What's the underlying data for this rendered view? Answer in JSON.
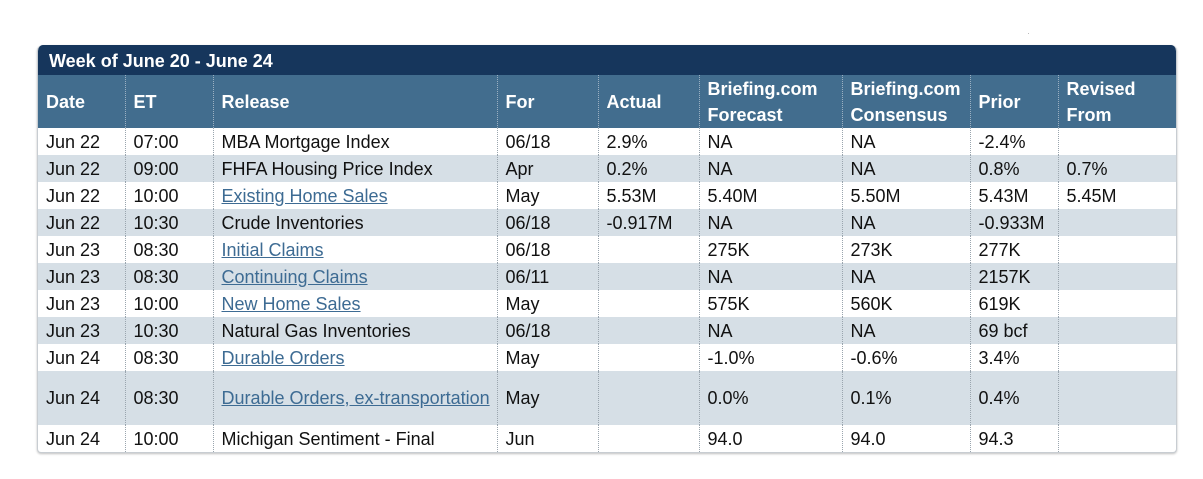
{
  "title": "Week of June 20 - June 24",
  "columns": [
    "Date",
    "ET",
    "Release",
    "For",
    "Actual",
    "Briefing.com Forecast",
    "Briefing.com Consensus",
    "Prior",
    "Revised From"
  ],
  "rows": [
    {
      "date": "Jun 22",
      "et": "07:00",
      "release": "MBA Mortgage Index",
      "link": false,
      "for": "06/18",
      "actual": "2.9%",
      "forecast": "NA",
      "consensus": "NA",
      "prior": "-2.4%",
      "revised": ""
    },
    {
      "date": "Jun 22",
      "et": "09:00",
      "release": "FHFA Housing Price Index",
      "link": false,
      "for": "Apr",
      "actual": "0.2%",
      "forecast": "NA",
      "consensus": "NA",
      "prior": "0.8%",
      "revised": "0.7%"
    },
    {
      "date": "Jun 22",
      "et": "10:00",
      "release": "Existing Home Sales",
      "link": true,
      "for": "May",
      "actual": "5.53M",
      "forecast": "5.40M",
      "consensus": "5.50M",
      "prior": "5.43M",
      "revised": "5.45M"
    },
    {
      "date": "Jun 22",
      "et": "10:30",
      "release": "Crude Inventories",
      "link": false,
      "for": "06/18",
      "actual": "-0.917M",
      "forecast": "NA",
      "consensus": "NA",
      "prior": "-0.933M",
      "revised": ""
    },
    {
      "date": "Jun 23",
      "et": "08:30",
      "release": "Initial Claims",
      "link": true,
      "for": "06/18",
      "actual": "",
      "forecast": "275K",
      "consensus": "273K",
      "prior": "277K",
      "revised": ""
    },
    {
      "date": "Jun 23",
      "et": "08:30",
      "release": "Continuing Claims",
      "link": true,
      "for": "06/11",
      "actual": "",
      "forecast": "NA",
      "consensus": "NA",
      "prior": "2157K",
      "revised": ""
    },
    {
      "date": "Jun 23",
      "et": "10:00",
      "release": "New Home Sales",
      "link": true,
      "for": "May",
      "actual": "",
      "forecast": "575K",
      "consensus": "560K",
      "prior": "619K",
      "revised": ""
    },
    {
      "date": "Jun 23",
      "et": "10:30",
      "release": "Natural Gas Inventories",
      "link": false,
      "for": "06/18",
      "actual": "",
      "forecast": "NA",
      "consensus": "NA",
      "prior": "69 bcf",
      "revised": ""
    },
    {
      "date": "Jun 24",
      "et": "08:30",
      "release": "Durable Orders",
      "link": true,
      "for": "May",
      "actual": "",
      "forecast": "-1.0%",
      "consensus": "-0.6%",
      "prior": "3.4%",
      "revised": ""
    },
    {
      "date": "Jun 24",
      "et": "08:30",
      "release": "Durable Orders, ex-transportation",
      "link": true,
      "for": "May",
      "actual": "",
      "forecast": "0.0%",
      "consensus": "0.1%",
      "prior": "0.4%",
      "revised": ""
    },
    {
      "date": "Jun 24",
      "et": "10:00",
      "release": "Michigan Sentiment - Final",
      "link": false,
      "for": "Jun",
      "actual": "",
      "forecast": "94.0",
      "consensus": "94.0",
      "prior": "94.3",
      "revised": ""
    }
  ],
  "colors": {
    "title_bg": "#16365c",
    "header_bg": "#426d8e",
    "alt_row": "#d6dfe6",
    "link": "#3d6b93"
  }
}
